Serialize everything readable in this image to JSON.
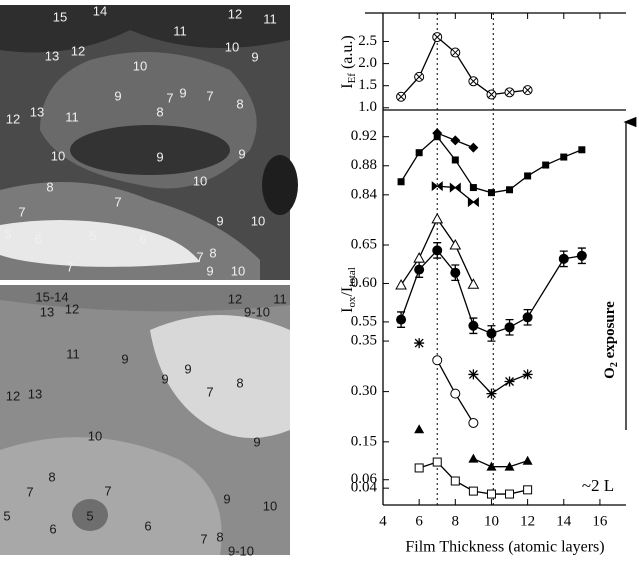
{
  "images": [
    {
      "labels": [
        "15",
        "14",
        "12",
        "11",
        "11",
        "13",
        "12",
        "10",
        "9",
        "10",
        "9",
        "7",
        "9",
        "8",
        "7",
        "8",
        "12",
        "13",
        "11",
        "10",
        "9",
        "9",
        "10",
        "8",
        "7",
        "7",
        "9",
        "10",
        "5",
        "6",
        "5",
        "6",
        "7",
        "7",
        "8",
        "9",
        "10"
      ]
    },
    {
      "labels": [
        "15-14",
        "12",
        "11",
        "13",
        "12",
        "9-10",
        "11",
        "9",
        "9",
        "9",
        "7",
        "8",
        "12",
        "13",
        "10",
        "9",
        "8",
        "7",
        "7",
        "9",
        "10",
        "5",
        "6",
        "5",
        "6",
        "7",
        "8",
        "9-10"
      ]
    }
  ],
  "chart_data": [
    {
      "type": "line",
      "ylabel_main": "I",
      "ylabel_sub": "Ef",
      "ylabel_unit": "(a.u.)",
      "ylim": [
        0.95,
        3.1
      ],
      "yticks": [
        {
          "value": 1,
          "label": "1.0"
        },
        1.5,
        {
          "value": 2,
          "label": "2.0"
        },
        2.5
      ],
      "reference_lines": [
        7,
        10.1
      ],
      "series": [
        {
          "marker": "circle-x",
          "color": "#000",
          "x": [
            5,
            6,
            7,
            8,
            9,
            10,
            11,
            12
          ],
          "values": [
            1.25,
            1.7,
            2.6,
            2.25,
            1.6,
            1.3,
            1.35,
            1.4
          ]
        }
      ]
    },
    {
      "type": "line",
      "ylim": [
        0.826,
        0.954
      ],
      "yticks": [
        0.92,
        0.88,
        0.84
      ],
      "series": [
        {
          "marker": "diamond",
          "color": "#000",
          "x": [
            7,
            8,
            9
          ],
          "values": [
            0.925,
            0.915,
            0.905
          ]
        },
        {
          "marker": "square",
          "color": "#000",
          "x": [
            5,
            6,
            7,
            8,
            9,
            10,
            11,
            12,
            13,
            14,
            15
          ],
          "values": [
            0.858,
            0.898,
            0.92,
            0.888,
            0.85,
            0.843,
            0.847,
            0.866,
            0.881,
            0.892,
            0.902
          ]
        },
        {
          "marker": "bowtie",
          "color": "#000",
          "x": [
            7,
            8,
            9
          ],
          "values": [
            0.852,
            0.85,
            0.83
          ]
        }
      ]
    },
    {
      "type": "line",
      "ylabel_main": "I",
      "ylabel_sub": "ox",
      "ylabel_mid": "/I",
      "ylabel_sub2": "total",
      "ylim": [
        0.533,
        0.702
      ],
      "yticks": [
        0.65,
        {
          "value": 0.6,
          "label": "0.60"
        },
        0.55
      ],
      "series": [
        {
          "marker": "circle",
          "color": "#000",
          "x": [
            5,
            6,
            7,
            8,
            9,
            10,
            11,
            12,
            14,
            15
          ],
          "values": [
            0.553,
            0.618,
            0.643,
            0.614,
            0.545,
            0.535,
            0.543,
            0.556,
            0.632,
            0.636
          ],
          "errors": [
            0.01,
            0.01,
            0.01,
            0.01,
            0.01,
            0.01,
            0.01,
            0.01,
            0.01,
            0.01
          ]
        },
        {
          "marker": "triangle-open",
          "color": "#000",
          "x": [
            5,
            6,
            7,
            8,
            9
          ],
          "values": [
            0.598,
            0.633,
            0.684,
            0.65,
            0.599
          ]
        }
      ]
    },
    {
      "type": "line",
      "ylim": [
        0.264,
        0.356
      ],
      "yticks": [
        0.35,
        {
          "value": 0.3,
          "label": "0.30"
        }
      ],
      "series": [
        {
          "marker": "star",
          "color": "#000",
          "x": [
            6,
            7,
            8,
            9,
            10,
            11,
            12
          ],
          "values": [
            0.348,
            null,
            null,
            0.317,
            0.298,
            0.31,
            0.317
          ]
        },
        {
          "marker": "circle-open",
          "color": "#000",
          "x": [
            7,
            8,
            9
          ],
          "values": [
            0.331,
            0.298,
            0.269
          ]
        }
      ]
    },
    {
      "type": "line",
      "ylim": [
        0,
        0.19
      ],
      "yticks": [
        0.15,
        0.06,
        0.04
      ],
      "xlim": [
        4,
        17
      ],
      "xticks": [
        4,
        6,
        8,
        10,
        12,
        14,
        16
      ],
      "xlabel": "Film Thickness (atomic layers)",
      "annotation": "~2 L",
      "exposure_main": "O",
      "exposure_sub": "2",
      "exposure_rest": " exposure",
      "series": [
        {
          "marker": "triangle",
          "color": "#000",
          "x": [
            6,
            7,
            8,
            9,
            10,
            11,
            12
          ],
          "values": [
            0.18,
            null,
            null,
            0.11,
            0.091,
            0.091,
            0.105
          ]
        },
        {
          "marker": "square-open",
          "color": "#000",
          "x": [
            6,
            7,
            8,
            9,
            10,
            11,
            12
          ],
          "values": [
            0.088,
            0.102,
            0.057,
            0.033,
            0.026,
            0.026,
            0.036
          ]
        }
      ]
    }
  ]
}
